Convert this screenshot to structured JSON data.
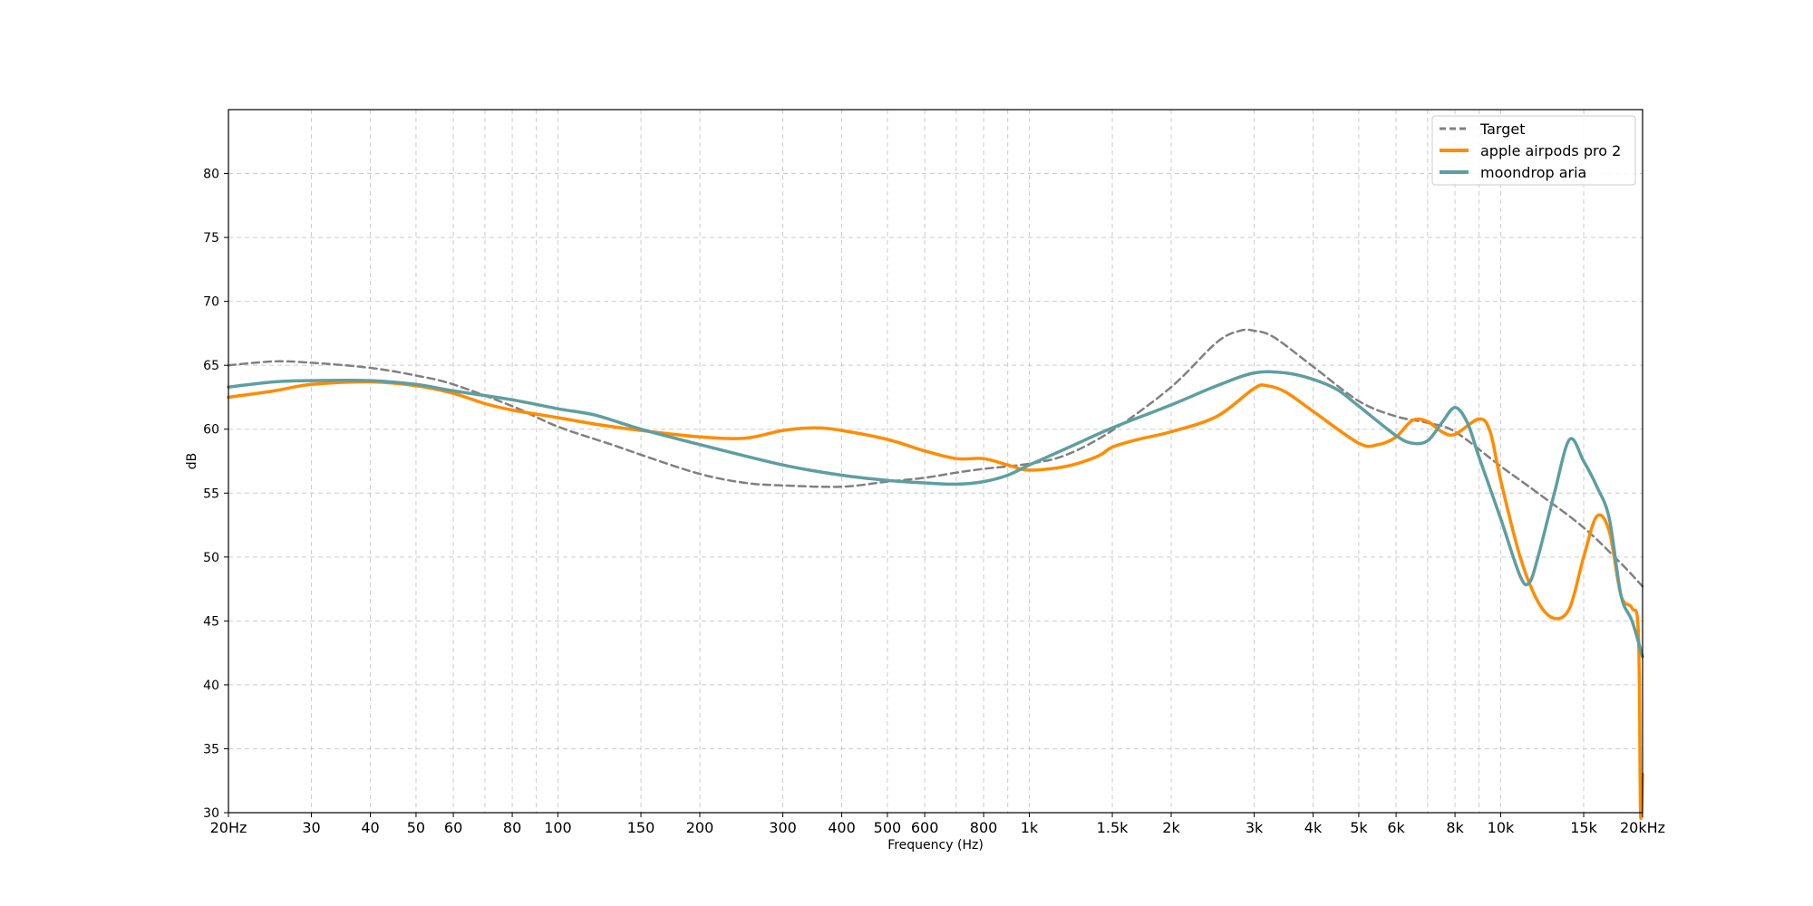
{
  "chart_data": {
    "type": "line",
    "xlabel": "Frequency (Hz)",
    "ylabel": "dB",
    "x_scale": "log",
    "xlim": [
      20,
      20000
    ],
    "ylim": [
      30,
      85
    ],
    "grid": true,
    "legend_position": "top-right",
    "x_ticks": [
      {
        "value": 20,
        "label": "20Hz"
      },
      {
        "value": 30,
        "label": "30"
      },
      {
        "value": 40,
        "label": "40"
      },
      {
        "value": 50,
        "label": "50"
      },
      {
        "value": 60,
        "label": "60"
      },
      {
        "value": 80,
        "label": "80"
      },
      {
        "value": 100,
        "label": "100"
      },
      {
        "value": 150,
        "label": "150"
      },
      {
        "value": 200,
        "label": "200"
      },
      {
        "value": 300,
        "label": "300"
      },
      {
        "value": 400,
        "label": "400"
      },
      {
        "value": 500,
        "label": "500"
      },
      {
        "value": 600,
        "label": "600"
      },
      {
        "value": 800,
        "label": "800"
      },
      {
        "value": 1000,
        "label": "1k"
      },
      {
        "value": 1500,
        "label": "1.5k"
      },
      {
        "value": 2000,
        "label": "2k"
      },
      {
        "value": 3000,
        "label": "3k"
      },
      {
        "value": 4000,
        "label": "4k"
      },
      {
        "value": 5000,
        "label": "5k"
      },
      {
        "value": 6000,
        "label": "6k"
      },
      {
        "value": 8000,
        "label": "8k"
      },
      {
        "value": 10000,
        "label": "10k"
      },
      {
        "value": 15000,
        "label": "15k"
      },
      {
        "value": 20000,
        "label": "20kHz"
      }
    ],
    "x_minor_grid": [
      70,
      90,
      700,
      900,
      7000,
      9000
    ],
    "y_ticks": [
      30,
      35,
      40,
      45,
      50,
      55,
      60,
      65,
      70,
      75,
      80
    ],
    "series": [
      {
        "name": "Target",
        "color": "#808080",
        "style": "dashed",
        "points": [
          [
            20,
            65.0
          ],
          [
            25,
            65.3
          ],
          [
            30,
            65.2
          ],
          [
            40,
            64.8
          ],
          [
            50,
            64.2
          ],
          [
            60,
            63.5
          ],
          [
            80,
            61.8
          ],
          [
            100,
            60.2
          ],
          [
            130,
            58.8
          ],
          [
            150,
            58.0
          ],
          [
            200,
            56.5
          ],
          [
            250,
            55.8
          ],
          [
            300,
            55.6
          ],
          [
            400,
            55.5
          ],
          [
            500,
            55.9
          ],
          [
            600,
            56.2
          ],
          [
            700,
            56.6
          ],
          [
            800,
            56.9
          ],
          [
            1000,
            57.3
          ],
          [
            1200,
            58.0
          ],
          [
            1500,
            59.9
          ],
          [
            2000,
            63.3
          ],
          [
            2500,
            66.8
          ],
          [
            2800,
            67.7
          ],
          [
            3000,
            67.7
          ],
          [
            3300,
            67.2
          ],
          [
            4000,
            64.9
          ],
          [
            5000,
            62.2
          ],
          [
            6000,
            61.0
          ],
          [
            7000,
            60.5
          ],
          [
            8000,
            59.8
          ],
          [
            10000,
            57.1
          ],
          [
            12000,
            55.0
          ],
          [
            15000,
            52.3
          ],
          [
            18000,
            49.5
          ],
          [
            20000,
            47.7
          ]
        ]
      },
      {
        "name": "apple airpods pro 2",
        "color": "#ff8c00",
        "style": "solid",
        "points": [
          [
            20,
            62.5
          ],
          [
            25,
            63.0
          ],
          [
            30,
            63.5
          ],
          [
            40,
            63.7
          ],
          [
            50,
            63.4
          ],
          [
            60,
            62.8
          ],
          [
            70,
            62.0
          ],
          [
            80,
            61.5
          ],
          [
            100,
            60.9
          ],
          [
            120,
            60.4
          ],
          [
            150,
            59.9
          ],
          [
            200,
            59.4
          ],
          [
            250,
            59.3
          ],
          [
            300,
            59.9
          ],
          [
            350,
            60.1
          ],
          [
            400,
            59.9
          ],
          [
            500,
            59.2
          ],
          [
            600,
            58.3
          ],
          [
            700,
            57.7
          ],
          [
            800,
            57.7
          ],
          [
            900,
            57.2
          ],
          [
            1000,
            56.8
          ],
          [
            1200,
            57.1
          ],
          [
            1400,
            57.9
          ],
          [
            1500,
            58.6
          ],
          [
            1700,
            59.2
          ],
          [
            2000,
            59.8
          ],
          [
            2500,
            61.0
          ],
          [
            3000,
            63.2
          ],
          [
            3200,
            63.4
          ],
          [
            3500,
            62.9
          ],
          [
            4000,
            61.4
          ],
          [
            5000,
            58.9
          ],
          [
            5500,
            58.8
          ],
          [
            6000,
            59.4
          ],
          [
            6500,
            60.7
          ],
          [
            7000,
            60.6
          ],
          [
            7500,
            59.8
          ],
          [
            8000,
            59.6
          ],
          [
            9000,
            60.8
          ],
          [
            9500,
            59.8
          ],
          [
            10000,
            56.0
          ],
          [
            11000,
            50.0
          ],
          [
            12000,
            46.5
          ],
          [
            13000,
            45.2
          ],
          [
            14000,
            46.0
          ],
          [
            15000,
            50.0
          ],
          [
            16000,
            53.2
          ],
          [
            17000,
            52.0
          ],
          [
            18000,
            47.0
          ],
          [
            19000,
            46.0
          ],
          [
            19600,
            44.0
          ],
          [
            19800,
            30.0
          ],
          [
            20000,
            33.0
          ]
        ]
      },
      {
        "name": "moondrop aria",
        "color": "#5f9ea0",
        "style": "solid",
        "points": [
          [
            20,
            63.3
          ],
          [
            25,
            63.7
          ],
          [
            30,
            63.8
          ],
          [
            40,
            63.8
          ],
          [
            50,
            63.5
          ],
          [
            60,
            63.0
          ],
          [
            80,
            62.3
          ],
          [
            100,
            61.6
          ],
          [
            120,
            61.1
          ],
          [
            150,
            60.0
          ],
          [
            200,
            58.8
          ],
          [
            300,
            57.2
          ],
          [
            400,
            56.4
          ],
          [
            500,
            56.0
          ],
          [
            600,
            55.8
          ],
          [
            700,
            55.7
          ],
          [
            800,
            55.9
          ],
          [
            900,
            56.4
          ],
          [
            1000,
            57.2
          ],
          [
            1200,
            58.5
          ],
          [
            1500,
            60.1
          ],
          [
            2000,
            61.9
          ],
          [
            2500,
            63.4
          ],
          [
            3000,
            64.4
          ],
          [
            3500,
            64.4
          ],
          [
            4000,
            63.9
          ],
          [
            4500,
            63.1
          ],
          [
            5000,
            61.8
          ],
          [
            6000,
            59.5
          ],
          [
            6500,
            58.9
          ],
          [
            7000,
            59.1
          ],
          [
            7500,
            60.5
          ],
          [
            8000,
            61.7
          ],
          [
            8500,
            60.5
          ],
          [
            9000,
            57.8
          ],
          [
            10000,
            53.0
          ],
          [
            11000,
            48.5
          ],
          [
            11500,
            48.0
          ],
          [
            12000,
            50.0
          ],
          [
            13000,
            55.0
          ],
          [
            14000,
            59.2
          ],
          [
            15000,
            57.5
          ],
          [
            16000,
            55.5
          ],
          [
            17000,
            53.0
          ],
          [
            18000,
            47.0
          ],
          [
            19000,
            45.0
          ],
          [
            20000,
            42.2
          ]
        ]
      }
    ]
  }
}
